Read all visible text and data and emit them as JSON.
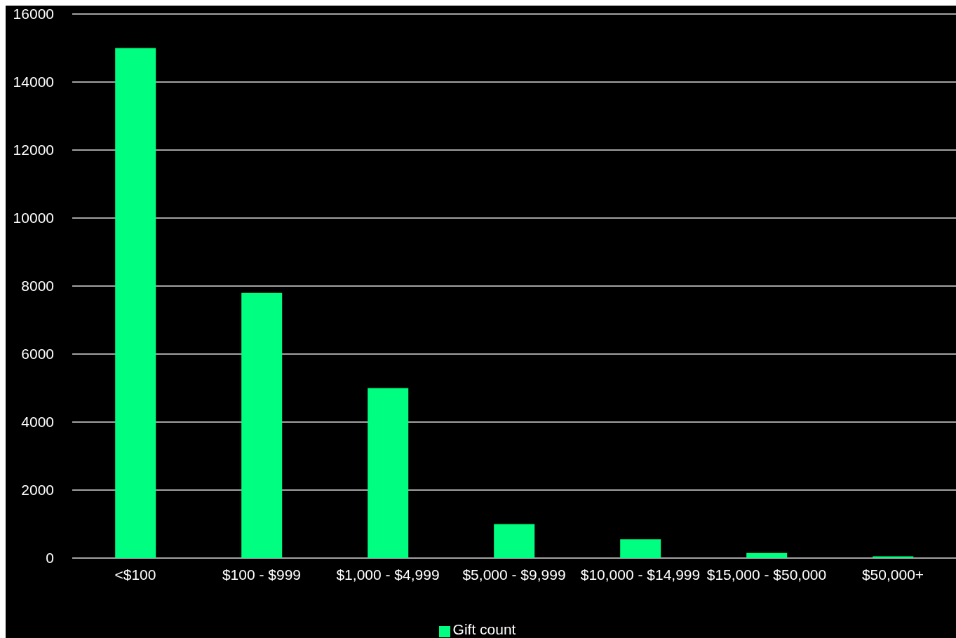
{
  "chart_data": {
    "type": "bar",
    "categories": [
      "<$100",
      "$100 - $999",
      "$1,000 - $4,999",
      "$5,000 - $9,999",
      "$10,000 - $14,999",
      "$15,000 - $50,000",
      "$50,000+"
    ],
    "series": [
      {
        "name": "Gift count",
        "color": "#00ff80",
        "values": [
          15000,
          7800,
          5000,
          1000,
          550,
          150,
          50
        ]
      }
    ],
    "ylim": [
      0,
      16000
    ],
    "yticks": [
      0,
      2000,
      4000,
      6000,
      8000,
      10000,
      12000,
      14000,
      16000
    ],
    "grid": "y",
    "legend": "bottom"
  }
}
